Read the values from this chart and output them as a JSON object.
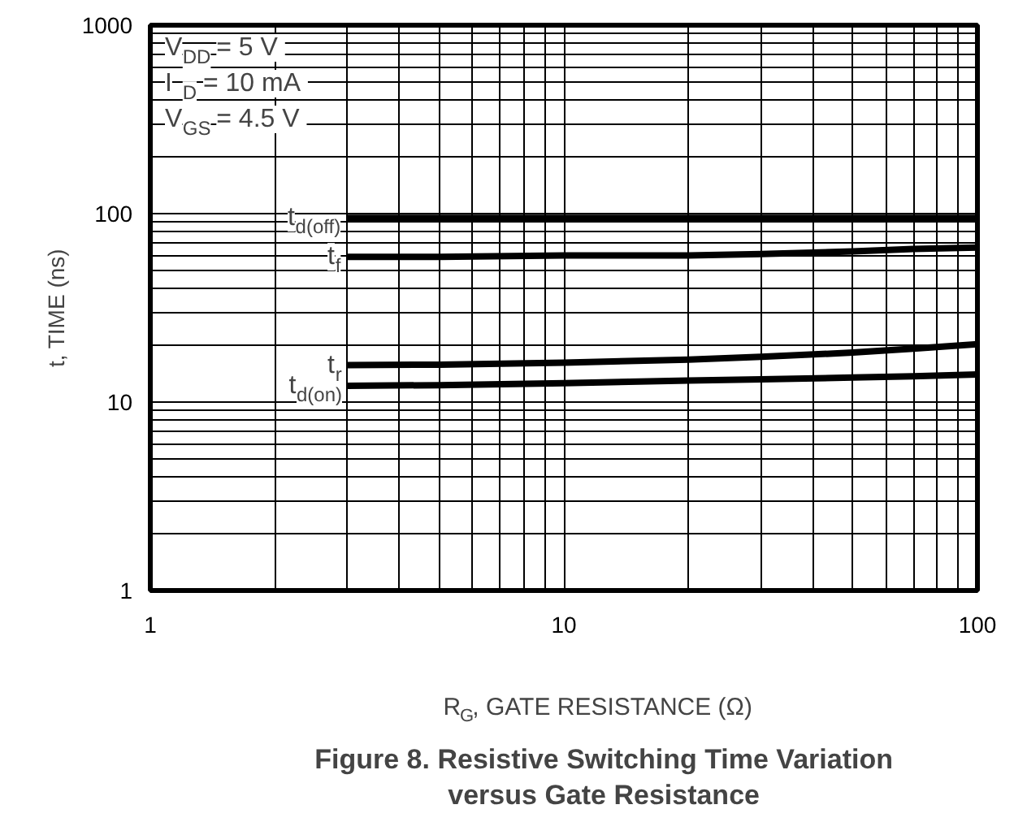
{
  "chart_data": {
    "type": "line",
    "title": "Figure 8. Resistive Switching Time Variation versus Gate Resistance",
    "xlabel": "R$_{G}$, GATE RESISTANCE (Ω)",
    "ylabel": "t, TIME (ns)",
    "log": "xy",
    "xlim": [
      1,
      100
    ],
    "ylim": [
      1,
      1000
    ],
    "xticks": [
      1,
      {
        "value": 2,
        "label": null
      },
      {
        "value": 3,
        "label": null
      },
      {
        "value": 4,
        "label": null
      },
      {
        "value": 5,
        "label": null
      },
      {
        "value": 6,
        "label": null
      },
      {
        "value": 7,
        "label": null
      },
      {
        "value": 8,
        "label": null
      },
      {
        "value": 9,
        "label": null
      },
      10,
      {
        "value": 20,
        "label": null
      },
      {
        "value": 30,
        "label": null
      },
      {
        "value": 40,
        "label": null
      },
      {
        "value": 50,
        "label": null
      },
      {
        "value": 60,
        "label": null
      },
      {
        "value": 70,
        "label": null
      },
      {
        "value": 80,
        "label": null
      },
      {
        "value": 90,
        "label": null
      },
      100
    ],
    "yticks": [
      1,
      {
        "value": 2,
        "label": null
      },
      {
        "value": 3,
        "label": null
      },
      {
        "value": 4,
        "label": null
      },
      {
        "value": 5,
        "label": null
      },
      {
        "value": 6,
        "label": null
      },
      {
        "value": 7,
        "label": null
      },
      {
        "value": 8,
        "label": null
      },
      {
        "value": 9,
        "label": null
      },
      10,
      {
        "value": 20,
        "label": null
      },
      {
        "value": 30,
        "label": null
      },
      {
        "value": 40,
        "label": null
      },
      {
        "value": 50,
        "label": null
      },
      {
        "value": 60,
        "label": null
      },
      {
        "value": 70,
        "label": null
      },
      {
        "value": 80,
        "label": null
      },
      {
        "value": 90,
        "label": null
      },
      100,
      {
        "value": 200,
        "label": null
      },
      {
        "value": 300,
        "label": null
      },
      {
        "value": 400,
        "label": null
      },
      {
        "value": 500,
        "label": null
      },
      {
        "value": 600,
        "label": null
      },
      {
        "value": 700,
        "label": null
      },
      {
        "value": 800,
        "label": null
      },
      {
        "value": 900,
        "label": null
      },
      1000
    ],
    "grid": true,
    "legend": false,
    "marker": "none",
    "line_style": "solid",
    "x": [
      3,
      5,
      10,
      20,
      30,
      50,
      70,
      100
    ],
    "series": [
      {
        "name": "t$_{d(off)}$",
        "color": "#000000",
        "values": [
          95,
          95,
          95,
          95,
          95,
          95,
          95,
          95
        ]
      },
      {
        "name": "t$_{f}$",
        "color": "#000000",
        "values": [
          59,
          59,
          60,
          60,
          61,
          63,
          65,
          66
        ]
      },
      {
        "name": "t$_{r}$",
        "color": "#000000",
        "values": [
          15.7,
          15.8,
          16.2,
          16.8,
          17.4,
          18.3,
          19.2,
          20.3
        ]
      },
      {
        "name": "t$_{d(on)}$",
        "color": "#000000",
        "values": [
          12.2,
          12.3,
          12.6,
          13.0,
          13.2,
          13.5,
          13.7,
          14.0
        ]
      }
    ],
    "annotations": [
      "V$_{DD}$ = 5 V",
      "I$_{D}$ = 10 mA",
      "V$_{GS}$ = 4.5 V"
    ]
  }
}
